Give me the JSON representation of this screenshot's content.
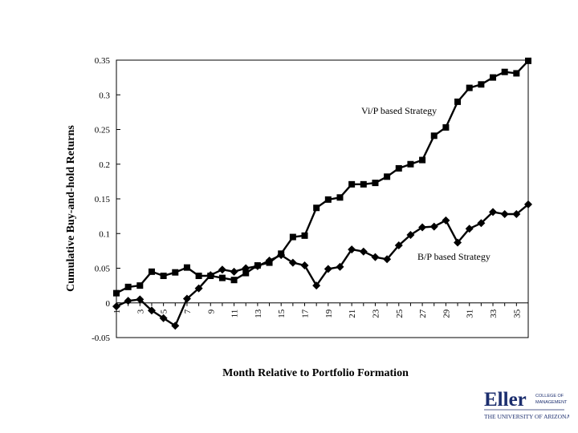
{
  "chart_data": {
    "type": "line",
    "title": "",
    "xlabel": "Month Relative to Portfolio Formation",
    "ylabel": "Cumulative Buy-and-hold Returns",
    "x": [
      1,
      2,
      3,
      4,
      5,
      6,
      7,
      8,
      9,
      10,
      11,
      12,
      13,
      14,
      15,
      16,
      17,
      18,
      19,
      20,
      21,
      22,
      23,
      24,
      25,
      26,
      27,
      28,
      29,
      30,
      31,
      32,
      33,
      34,
      35,
      36
    ],
    "x_tick_labels": [
      "1",
      "3",
      "5",
      "7",
      "9",
      "11",
      "13",
      "15",
      "17",
      "19",
      "21",
      "23",
      "25",
      "27",
      "29",
      "31",
      "33",
      "35"
    ],
    "xlim": [
      1,
      36
    ],
    "ylim": [
      -0.05,
      0.35
    ],
    "y_ticks": [
      -0.05,
      0,
      0.05,
      0.1,
      0.15,
      0.2,
      0.25,
      0.3,
      0.35
    ],
    "y_tick_labels": [
      "-0.05",
      "0",
      "0.05",
      "0.1",
      "0.15",
      "0.2",
      "0.25",
      "0.3",
      "0.35"
    ],
    "grid": false,
    "legend": "inline labels",
    "series": [
      {
        "name": "Vi/P based Strategy",
        "marker": "square",
        "color": "#000000",
        "values": [
          0.014,
          0.023,
          0.025,
          0.045,
          0.039,
          0.044,
          0.051,
          0.039,
          0.039,
          0.036,
          0.033,
          0.043,
          0.054,
          0.058,
          0.071,
          0.095,
          0.097,
          0.137,
          0.149,
          0.152,
          0.171,
          0.171,
          0.173,
          0.182,
          0.194,
          0.2,
          0.206,
          0.241,
          0.253,
          0.29,
          0.31,
          0.315,
          0.325,
          0.333,
          0.331,
          0.349
        ]
      },
      {
        "name": "B/P based Strategy",
        "marker": "diamond",
        "color": "#000000",
        "values": [
          -0.005,
          0.003,
          0.005,
          -0.011,
          -0.022,
          -0.033,
          0.006,
          0.021,
          0.04,
          0.048,
          0.045,
          0.05,
          0.053,
          0.061,
          0.069,
          0.058,
          0.054,
          0.025,
          0.049,
          0.052,
          0.077,
          0.074,
          0.066,
          0.063,
          0.083,
          0.098,
          0.109,
          0.11,
          0.119,
          0.087,
          0.107,
          0.115,
          0.131,
          0.128,
          0.128,
          0.142
        ]
      }
    ]
  },
  "logo": {
    "main": "Eller",
    "line1": "COLLEGE OF",
    "line2": "MANAGEMENT",
    "sub": "THE UNIVERSITY OF ARIZONA"
  }
}
